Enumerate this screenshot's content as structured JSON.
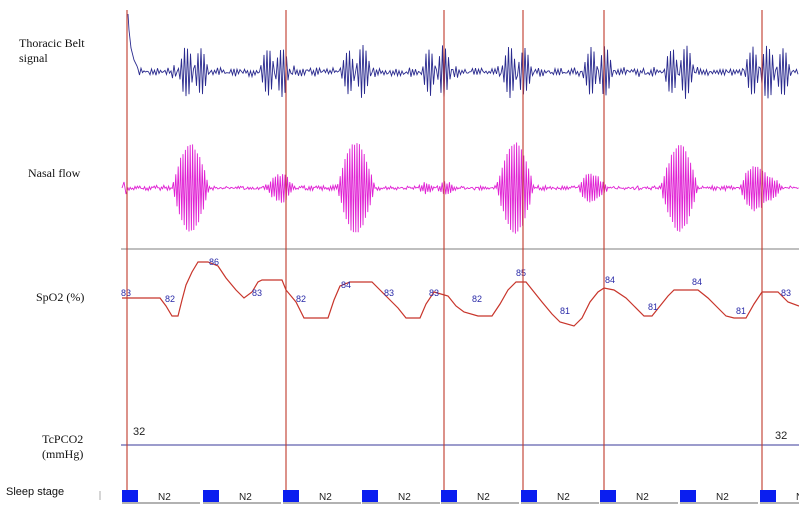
{
  "channels": {
    "thoracic_line1": "Thoracic Belt",
    "thoracic_line2": "signal",
    "nasal": "Nasal flow",
    "spo2": "SpO2 (%)",
    "tcpco2_line1": "TcPCO2",
    "tcpco2_line2": "(mmHg)",
    "sleep_stage": "Sleep stage"
  },
  "colors": {
    "thoracic": "#2b2b8f",
    "nasal": "#e021d4",
    "spo2": "#c8352b",
    "spo2_labels": "#2a2aa8",
    "tcpco2": "#3a3a9a",
    "markers": "#c0392b",
    "stage_block": "#0a1ef0",
    "separator": "#555555"
  },
  "chart_data": {
    "type": "line",
    "title": "",
    "event_count": 9,
    "spo2_labels": [
      {
        "text": "83"
      },
      {
        "text": "82"
      },
      {
        "text": "86"
      },
      {
        "text": "83"
      },
      {
        "text": "82"
      },
      {
        "text": "84"
      },
      {
        "text": "83"
      },
      {
        "text": "83"
      },
      {
        "text": "82"
      },
      {
        "text": "85"
      },
      {
        "text": "81"
      },
      {
        "text": "84"
      },
      {
        "text": "81"
      },
      {
        "text": "84"
      },
      {
        "text": "81"
      },
      {
        "text": "83"
      }
    ],
    "tcpco2_labels": [
      "32",
      "32"
    ],
    "sleep_stages": [
      "N2",
      "N2",
      "N2",
      "N2",
      "N2",
      "N2",
      "N2",
      "N2",
      "N"
    ]
  }
}
